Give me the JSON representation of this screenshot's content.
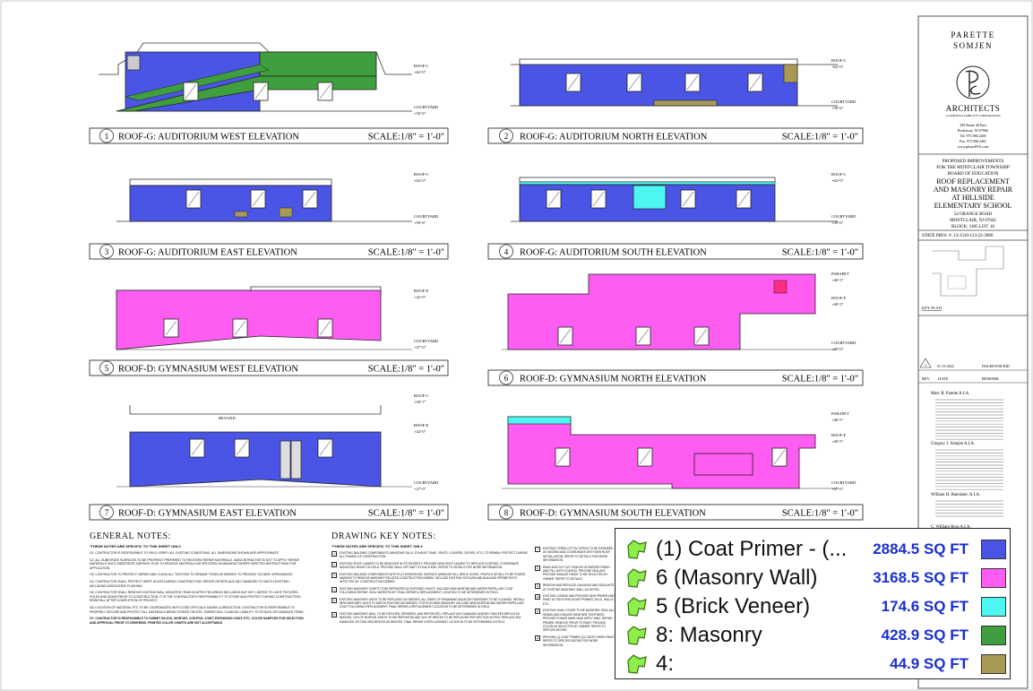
{
  "elevations": [
    {
      "num": "1",
      "title": "ROOF-G: AUDITORIUM WEST ELEVATION",
      "scale": "SCALE:1/8\" = 1'-0\""
    },
    {
      "num": "2",
      "title": "ROOF-G: AUDITORIUM NORTH ELEVATION",
      "scale": "SCALE:1/8\" = 1'-0\""
    },
    {
      "num": "3",
      "title": "ROOF-G: AUDITORIUM EAST ELEVATION",
      "scale": "SCALE:1/8\" = 1'-0\""
    },
    {
      "num": "4",
      "title": "ROOF-G: AUDITORIUM SOUTH ELEVATION",
      "scale": "SCALE:1/8\" = 1'-0\""
    },
    {
      "num": "5",
      "title": "ROOF-D: GYMNASIUM WEST ELEVATION",
      "scale": "SCALE:1/8\" = 1'-0\""
    },
    {
      "num": "6",
      "title": "ROOF-D: GYMNASIUM NORTH ELEVATION",
      "scale": "SCALE:1/8\" = 1'-0\""
    },
    {
      "num": "7",
      "title": "ROOF-D: GYMNASIUM EAST ELEVATION",
      "scale": "SCALE:1/8\" = 1'-0\""
    },
    {
      "num": "8",
      "title": "ROOF-D: GYMNASIUM SOUTH ELEVATION",
      "scale": "SCALE:1/8\" = 1'-0\""
    }
  ],
  "dims": {
    "roof_c": "ROOF-C",
    "roof_e": "ROOF-E",
    "roof_f": "ROOF-F",
    "parapet": "PARAPET",
    "courtyard": "COURTYARD",
    "el_62": "+62'-0\"",
    "el_50": "+50'-6\"",
    "el_42": "+42'-0\"",
    "el_40": "+40'-5\"",
    "el_46": "+46'-5\"",
    "el_27": "+27'-0\"",
    "el_50b": "+50'-7\"",
    "beyond": "BEYOND"
  },
  "title_block": {
    "firm_line1": "PARETTE",
    "firm_line2": "SOMJEN",
    "firm_line3": "ARCHITECTS",
    "firm_sub": "A LIMITED LIABILITY CORPORATION",
    "addr1": "439 Route 46 East",
    "addr2": "Rockaway, NJ 07866",
    "tel": "Tel. 973.586.2400",
    "fax": "Fax. 973.586.2401",
    "web": "www.plusesPSA.com",
    "proposed": "PROPOSED IMPROVEMENTS",
    "for_the": "FOR THE MONTCLAIR TOWNSHIP",
    "board": "BOARD OF EDUCATION",
    "p1": "ROOF REPLACEMENT",
    "p2": "AND MASONRY REPAIR",
    "p3": "AT HILLSIDE",
    "p4": "ELEMENTARY SCHOOL",
    "street": "54 ORANGE ROAD",
    "city": "MONTCLAIR, NJ 07042",
    "block": "BLOCK: 1405 LOT: 16",
    "state_proj": "STATE PROJ. #: 13-3310-123-22-2000",
    "key_plan": "KEY PLAN",
    "rev_num": "1",
    "rev_date": "01-12-2024",
    "rev_remark": "ISSUED FOR BID",
    "rev_h1": "REV",
    "rev_h2": "DATE",
    "rev_h3": "REMARK",
    "arch1": "Marc R. Parette A.I.A.",
    "arch2": "Gregory J. Somjen A.I.A.",
    "arch3": "William H. Bannister, A.I.A.",
    "arch4": "C. William Ross A.I.A."
  },
  "general_notes": {
    "title": "GENERAL NOTES:",
    "sub": "*THESE NOTES ARE SPECIFIC TO THIS SHEET ONLY.",
    "g1": "G1. CONTRACTOR IS RESPONSIBLE TO FIELD VERIFY ALL EXISTING CONDITIONS. ALL DIMENSIONS SHOWN ARE APPROXIMATE.",
    "g2": "G2. ALL SUBSTRATE SURFACES TO BE PROPERLY PREPARED TO RECEIVED REPAIR MATERIALS. SUBCONTRACTOR IS NOT TO APPLY REPAIR MATERIALS UNTIL SUBSTRATE SURFACE IS OK TO RECEIVE MATERIALS AS SPECIFIED IN MANUFACTURER'S WRITTEN INSTRUCTIONS FOR APPLICATION.",
    "g3": "G3. CONTRACTOR TO PROTECT, REPAIR AND CLEAN ALL \"EXISTING TO REMAIN\" ITEMS AS NEEDED TO PROVIDE \"AS NEW\" APPEARANCE.",
    "g4": "G4. CONTRACTOR SHALL PROTECT WEEP HOLES DURING CONSTRUCTION. REPAIR OR REPLACE ANY DAMAGED TO MATCH EXISTING, INCLUDING ASSOCIATED FLASHING.",
    "g5": "G5. CONTRACTOR SHALL REMOVE EXISTING WALL MOUNTED ITEMS IN AFFECTED AREAS INCLUDING BUT NOT LIMITED TO LIGHT FIXTURES, POLES AND SIGNS PRIOR TO CONSTRUCTION. IT IS THE CONTRACTOR'S RESPONSIBILITY TO STORE AND PROTECT DURING CONSTRUCTION. REINSTALL AFTER COMPLETION OF PROJECT.",
    "g6": "G6. LOCATION OF MATERIAL ETC TO BE COORDINATED WITH CODE OFFICIALS HAVING JURISDICTION. CONTRACTOR IS RESPONSIBLE TO PROPERLY SECURE AND PROTECT ALL MATERIALS BEING STORED ON SITE. OWNER WILL CLAIM NO LIABILITY TO STOLEN OR DAMAGED ITEMS.",
    "g7": "G7. CONTRACTOR IS RESPONSIBLE TO SUBMIT BLOCK, MORTAR, CONTROL JOINT, EXPANSION JOINT, ETC. COLOR SAMPLES FOR SELECTION AND APPROVAL PRIOR TO ORDERING. PRINTED COLOR CHARTS ARE NOT ACCEPTABLE."
  },
  "drawing_key": {
    "title": "DRAWING KEY NOTES:",
    "sub": "*THESE NOTES ARE SPECIFIC TO THIS SHEET ONLY.",
    "k1": "EXISTING BUILDING COMPONENTS (WINDOWS SILLS, EXHAUST FANS, VENTS, LOUVERS, DOORS, ETC.) TO REMAIN. PROTECT DURING ALL PHASES OF CONSTRUCTION.",
    "k2": "EXISTING ROOF LADDER TO BE REMOVED IN ITS ENTIRETY. PROVIDE NEW ROOF LADDER TO REPLACE EXISTING. COORDINATE MOUNTING HEIGHT IN FIELD. PROVIDE WALK OFF MATT AT EACH END. REFER TO DETAILS FOR MORE INFORMATION.",
    "k3": "EXISTING BUILDING COMPONENTS WITH FLAT HORIZONTAL SURFACE (WINDOW SILL, BRICK LEDGE, PROFILE DETAIL) TO BE POWER-WASHED TO REMOVE MASONRY RELATED CONSTRUCTION DEBRIS. INCLUDE EXISTING SITE AROUND BUILDING PERIMETER IF AFFECTED BY CONSTRUCTION DEBRIS.",
    "k4": "EXISTING MASONRY JOINTS TO BE REPOINTED AT EXPOSED JOINTS. INCLUDE NEW MORTAR AND WATER REPELLANT COAT FOLLOWING REPAIR. SEAL WATERTIGHT. FINAL REPAIR & REPLACEMENT LOCATION TO BE DETERMINED IN FIELD.",
    "k5": "EXISTING MASONRY UNITS TO BE REPLACED AS NEEDED. ALL SIDES OF REMAINING ADJACENT MASONRY TO BE CLEANED. INSTALL NEW MASONRY UNITS TO MATCH EXISTING AS NEEDED. TOOTH IN NEW MASONRY. INCLUDE NEW MORTAR AND WATER REPELLANT COAT FOLLOWING REPLACEMENT. FINAL REPAIR & REPLACEMENT LOCATION TO BE DETERMINED IN FIELD.",
    "k6": "EXISTING MASONRY WALL TO BE PATCHED, REPAIRED, AND REPOINTED. REPLACE ANY DAMAGED AND/OR CRACKED BRICKS AS NEEDED. 10% OF MORTAR JOINTS TO BE REPOINTED AND 10% OF BRICKS TO BE REPLACED PER SECTION NOTED. REPLACE ANY DAMAGED OR CRACKED BRICKS AS NEEDED. FINAL REPAIR & REPLACEMENT LOCATION TO BE DETERMINED IN FIELD.",
    "k7": "EXISTING TERRA COTTA COPING TO BE REPAIRED AS NEEDED AND COORDINATE WITH NEW ROOF INSTALLATION. REFER TO DETAILS FOR MORE INFORMATION.",
    "k8": "RAKE AND CUT OUT CRACKS IN PARGED FINISH AND FILL WITH COATING. PROVIDE SEALANT. PROVIDE SIMILAR FINISH TO BE SELECTED BY OWNER. REFER TO DETAILS.",
    "k9": "REMOVE AND REPLACE CAULKING AND SEALANTS AT EXISTING MASONRY WALL AS NOTED.",
    "k10": "EXISTING CASING AND PROVIDE NEW PRIMER AND PAINT AT ROOF AND DOOR FRAMES, SILLS, WALLS, ETC.",
    "k11": "EXISTING HVAC COVER TO BE MODIFIED. SEAL ALL SEAMS AND ENSURE WEATHER TIGHTNESS. PROVIDE POWER WASH AND APPLY WALL REPAIR PRIMER. REMOVE PRIOR TO PAINT. PROVIDE COLOR AS SELECTED BY OWNER. REFER TO SPECIFICATIONS.",
    "k12": "PROVIDE (1) COAT PRIMER (2) COATS FINISH PAINT. REFER TO SPECIFICATIONS FOR MORE INFORMATION."
  },
  "legend": {
    "items": [
      {
        "label": "(1) Coat Primer - (...",
        "value": "2884.5 SQ FT",
        "color": "#4a55e6"
      },
      {
        "label": "6 (Masonry Wall)",
        "value": "3168.5 SQ FT",
        "color": "#ff5cf2"
      },
      {
        "label": "5 (Brick Veneer)",
        "value": "174.6 SQ FT",
        "color": "#4ef6f2"
      },
      {
        "label": "8: Masonry",
        "value": "428.9 SQ FT",
        "color": "#3f9e3d"
      },
      {
        "label": "4:",
        "value": "44.9 SQ FT",
        "color": "#a89a55"
      }
    ]
  },
  "colors": {
    "blue": "#4a55e6",
    "magenta": "#ff5cf2",
    "cyan": "#4ef6f2",
    "green": "#3f9e3d",
    "olive": "#a89a55",
    "icon_green": "#90ee4a"
  }
}
